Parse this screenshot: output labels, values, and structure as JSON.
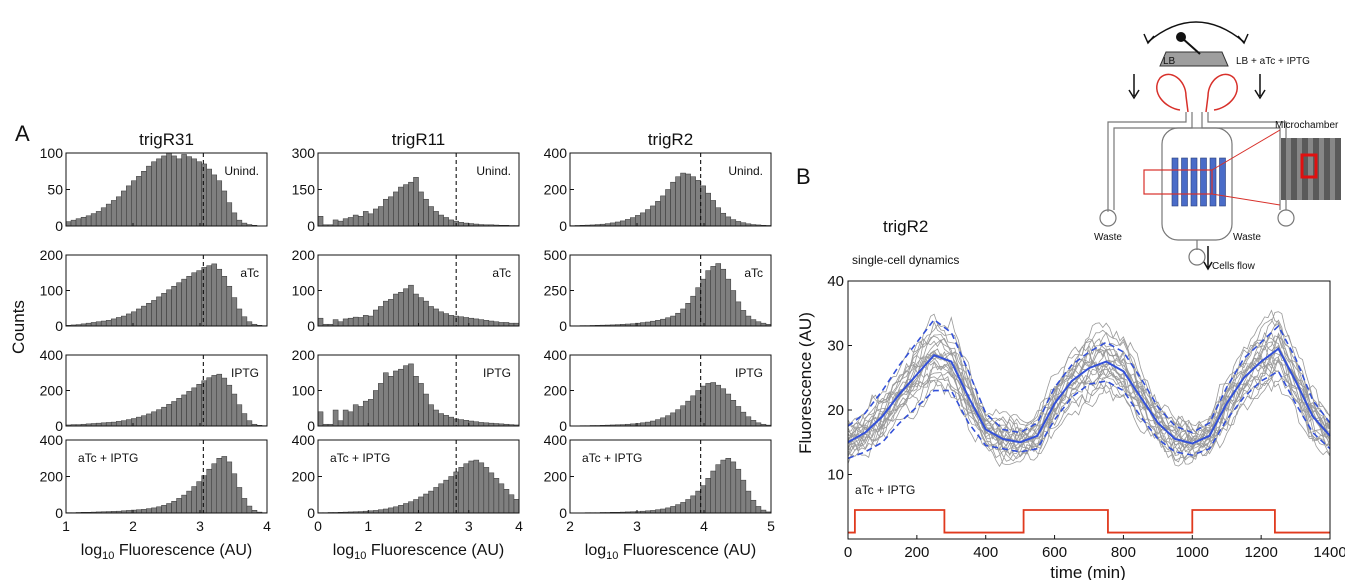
{
  "panel_labels": {
    "a": "A",
    "b": "B"
  },
  "panel_a": {
    "ylabel": "Counts",
    "xlabel_prefix": "log",
    "xlabel_sub": "10",
    "xlabel_suffix": " Fluorescence   (AU)",
    "conditions": [
      "Unind.",
      "aTc",
      "IPTG",
      "aTc + IPTG"
    ]
  },
  "panel_b": {
    "strain_title": "trigR2",
    "subtitle": "single-cell dynamics",
    "ylabel": "Fluorescence  (AU)",
    "xlabel": "time (min)",
    "input_label": "aTc + IPTG"
  },
  "schematic": {
    "lb": "LB",
    "lb_inducers": "LB + aTc + IPTG",
    "microchamber": "Microchamber",
    "waste_left": "Waste",
    "waste_right": "Waste",
    "cells_flow": "Cells flow"
  },
  "colors": {
    "bars": "#7f7f7f",
    "mean": "#3350d8",
    "traces": "#9a9a9a",
    "input": "#e03a1e"
  },
  "chart_data": [
    {
      "type": "bar",
      "title": "trigR31",
      "xlabel": "log10 Fluorescence (AU)",
      "ylabel": "Counts",
      "xlim": [
        1,
        4
      ],
      "xticks": [
        "1",
        "2",
        "3",
        "4"
      ],
      "threshold": 3.05,
      "panels": [
        {
          "label": "Unind.",
          "label_pos": "right",
          "ylim": [
            0,
            100
          ],
          "yticks": [
            "0",
            "50",
            "100"
          ],
          "values": [
            6,
            8,
            10,
            12,
            14,
            17,
            20,
            25,
            30,
            35,
            40,
            48,
            55,
            62,
            68,
            75,
            82,
            88,
            92,
            96,
            100,
            96,
            92,
            98,
            95,
            92,
            88,
            85,
            78,
            70,
            62,
            48,
            32,
            18,
            8,
            4,
            2,
            1,
            0,
            0
          ]
        },
        {
          "label": "aTc",
          "label_pos": "right",
          "ylim": [
            0,
            200
          ],
          "yticks": [
            "0",
            "100",
            "200"
          ],
          "values": [
            2,
            3,
            4,
            6,
            8,
            10,
            12,
            14,
            16,
            20,
            24,
            28,
            34,
            40,
            48,
            56,
            64,
            72,
            82,
            92,
            102,
            112,
            122,
            132,
            140,
            150,
            156,
            165,
            170,
            175,
            160,
            140,
            112,
            80,
            48,
            26,
            12,
            5,
            2,
            1
          ]
        },
        {
          "label": "IPTG",
          "label_pos": "right",
          "ylim": [
            0,
            400
          ],
          "yticks": [
            "0",
            "200",
            "400"
          ],
          "values": [
            6,
            8,
            8,
            10,
            12,
            14,
            16,
            18,
            20,
            22,
            26,
            30,
            36,
            42,
            50,
            58,
            68,
            80,
            92,
            106,
            122,
            138,
            156,
            175,
            195,
            215,
            235,
            255,
            272,
            285,
            292,
            270,
            230,
            180,
            120,
            70,
            30,
            10,
            4,
            2
          ]
        },
        {
          "label": "aTc + IPTG",
          "label_pos": "left",
          "ylim": [
            0,
            400
          ],
          "yticks": [
            "0",
            "200",
            "400"
          ],
          "values": [
            2,
            2,
            3,
            4,
            4,
            5,
            6,
            7,
            8,
            9,
            10,
            12,
            14,
            16,
            18,
            20,
            24,
            28,
            34,
            42,
            52,
            64,
            80,
            98,
            120,
            145,
            172,
            205,
            240,
            270,
            300,
            310,
            280,
            215,
            140,
            80,
            38,
            15,
            5,
            2
          ]
        }
      ]
    },
    {
      "type": "bar",
      "title": "trigR11",
      "xlabel": "log10 Fluorescence (AU)",
      "ylabel": "Counts",
      "xlim": [
        0,
        4
      ],
      "xticks": [
        "0",
        "1",
        "2",
        "3",
        "4"
      ],
      "threshold": 2.75,
      "panels": [
        {
          "label": "Unind.",
          "label_pos": "right",
          "ylim": [
            0,
            300
          ],
          "yticks": [
            "0",
            "150",
            "300"
          ],
          "values": [
            40,
            5,
            5,
            25,
            20,
            30,
            35,
            45,
            40,
            60,
            50,
            70,
            80,
            110,
            120,
            140,
            160,
            170,
            180,
            200,
            140,
            110,
            80,
            60,
            45,
            35,
            25,
            20,
            15,
            12,
            10,
            8,
            6,
            5,
            5,
            4,
            3,
            3,
            2,
            2
          ]
        },
        {
          "label": "aTc",
          "label_pos": "right",
          "ylim": [
            0,
            200
          ],
          "yticks": [
            "0",
            "100",
            "200"
          ],
          "values": [
            22,
            5,
            5,
            18,
            12,
            20,
            22,
            25,
            24,
            30,
            28,
            45,
            55,
            70,
            75,
            90,
            95,
            105,
            115,
            90,
            80,
            70,
            55,
            48,
            40,
            35,
            30,
            28,
            26,
            24,
            22,
            20,
            18,
            16,
            14,
            12,
            10,
            10,
            8,
            8
          ]
        },
        {
          "label": "IPTG",
          "label_pos": "right",
          "ylim": [
            0,
            200
          ],
          "yticks": [
            "0",
            "100",
            "200"
          ],
          "values": [
            40,
            5,
            5,
            45,
            15,
            45,
            40,
            60,
            55,
            70,
            75,
            100,
            120,
            150,
            140,
            155,
            160,
            170,
            175,
            140,
            120,
            90,
            60,
            45,
            35,
            30,
            25,
            20,
            18,
            16,
            14,
            12,
            10,
            9,
            8,
            7,
            6,
            5,
            4,
            3
          ]
        },
        {
          "label": "aTc + IPTG",
          "label_pos": "left",
          "ylim": [
            0,
            400
          ],
          "yticks": [
            "0",
            "200",
            "400"
          ],
          "values": [
            2,
            2,
            3,
            3,
            4,
            5,
            6,
            7,
            8,
            10,
            12,
            14,
            18,
            22,
            28,
            34,
            42,
            52,
            62,
            74,
            88,
            104,
            120,
            140,
            160,
            180,
            200,
            225,
            250,
            270,
            285,
            290,
            275,
            250,
            220,
            190,
            160,
            130,
            100,
            75
          ]
        }
      ]
    },
    {
      "type": "bar",
      "title": "trigR2",
      "xlabel": "log10 Fluorescence (AU)",
      "ylabel": "Counts",
      "xlim": [
        2,
        5
      ],
      "xticks": [
        "2",
        "3",
        "4",
        "5"
      ],
      "threshold": 3.95,
      "panels": [
        {
          "label": "Unind.",
          "label_pos": "right",
          "ylim": [
            0,
            400
          ],
          "yticks": [
            "0",
            "200",
            "400"
          ],
          "values": [
            2,
            3,
            4,
            5,
            6,
            8,
            10,
            13,
            17,
            22,
            28,
            36,
            46,
            58,
            72,
            90,
            110,
            135,
            165,
            200,
            240,
            270,
            290,
            285,
            270,
            250,
            220,
            180,
            140,
            100,
            70,
            50,
            35,
            25,
            18,
            12,
            8,
            6,
            4,
            3
          ]
        },
        {
          "label": "aTc",
          "label_pos": "right",
          "ylim": [
            0,
            500
          ],
          "yticks": [
            "0",
            "250",
            "500"
          ],
          "values": [
            2,
            2,
            3,
            3,
            4,
            5,
            6,
            7,
            8,
            10,
            12,
            14,
            16,
            20,
            24,
            28,
            34,
            40,
            48,
            58,
            70,
            90,
            120,
            160,
            210,
            270,
            330,
            390,
            420,
            440,
            400,
            330,
            250,
            170,
            110,
            70,
            45,
            30,
            20,
            12
          ]
        },
        {
          "label": "IPTG",
          "label_pos": "right",
          "ylim": [
            0,
            400
          ],
          "yticks": [
            "0",
            "200",
            "400"
          ],
          "values": [
            1,
            1,
            2,
            2,
            3,
            3,
            4,
            5,
            6,
            7,
            8,
            10,
            12,
            14,
            18,
            22,
            28,
            36,
            46,
            58,
            74,
            92,
            114,
            140,
            170,
            200,
            225,
            240,
            245,
            230,
            210,
            180,
            145,
            110,
            78,
            52,
            32,
            18,
            10,
            5
          ]
        },
        {
          "label": "aTc + IPTG",
          "label_pos": "left",
          "ylim": [
            0,
            400
          ],
          "yticks": [
            "0",
            "200",
            "400"
          ],
          "values": [
            1,
            1,
            1,
            2,
            2,
            2,
            3,
            3,
            4,
            4,
            5,
            6,
            7,
            8,
            10,
            12,
            14,
            18,
            22,
            28,
            36,
            46,
            58,
            74,
            94,
            120,
            150,
            190,
            230,
            265,
            290,
            300,
            280,
            240,
            180,
            120,
            70,
            36,
            16,
            6
          ]
        }
      ]
    },
    {
      "type": "line",
      "title": "trigR2",
      "subtitle": "single-cell dynamics",
      "xlabel": "time (min)",
      "ylabel": "Fluorescence  (AU)",
      "xlim": [
        0,
        1400
      ],
      "ylim": [
        0,
        40
      ],
      "xticks": [
        0,
        200,
        400,
        600,
        800,
        1000,
        1200,
        1400
      ],
      "yticks": [
        10,
        20,
        30,
        40
      ],
      "x": [
        0,
        50,
        100,
        150,
        200,
        250,
        300,
        350,
        400,
        450,
        500,
        550,
        600,
        650,
        700,
        750,
        800,
        850,
        900,
        950,
        1000,
        1050,
        1100,
        1150,
        1200,
        1250,
        1300,
        1350,
        1400
      ],
      "series": [
        {
          "role": "mean",
          "values": [
            15,
            16.5,
            19,
            22.5,
            25.5,
            28.5,
            27.5,
            22,
            17,
            15.5,
            15,
            16,
            21,
            24.5,
            26.5,
            27.5,
            26,
            22,
            18,
            15.5,
            14.8,
            16,
            21,
            25,
            27.5,
            29.5,
            24.5,
            19,
            16
          ]
        },
        {
          "role": "mean_plus_std",
          "values": [
            17.5,
            19.5,
            23,
            27,
            30.5,
            34,
            32,
            26,
            19.5,
            17,
            16.5,
            18,
            23.5,
            27,
            29,
            30.5,
            29,
            25,
            20.5,
            17.5,
            16.5,
            18,
            23.5,
            28,
            30.5,
            33,
            28,
            21.5,
            18
          ]
        },
        {
          "role": "mean_minus_std",
          "values": [
            12.5,
            13.5,
            15,
            18,
            20.5,
            23,
            23,
            18,
            14.5,
            14,
            13.5,
            14,
            18.5,
            22,
            24,
            24.5,
            23,
            19,
            15.5,
            13.5,
            13,
            14,
            18.5,
            22,
            24.5,
            26,
            21,
            16.5,
            14
          ]
        }
      ],
      "single_cell_traces": 22,
      "input": {
        "label": "aTc + IPTG",
        "low": 1,
        "high": 4.5,
        "on_intervals": [
          [
            20,
            280
          ],
          [
            510,
            755
          ],
          [
            1000,
            1240
          ]
        ]
      }
    }
  ]
}
